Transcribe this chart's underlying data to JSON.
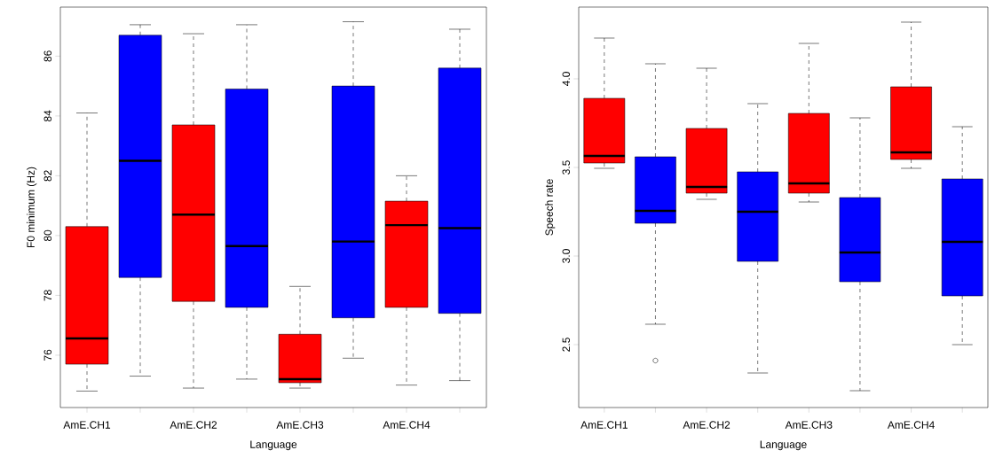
{
  "chart_data": [
    {
      "type": "box",
      "xlabel": "Language",
      "ylabel": "F0 minimum (Hz)",
      "categories": [
        "AmE.CH1",
        null,
        "AmE.CH2",
        null,
        "AmE.CH3",
        null,
        "AmE.CH4",
        null
      ],
      "colors": [
        "#ff0000",
        "#0000ff",
        "#ff0000",
        "#0000ff",
        "#ff0000",
        "#0000ff",
        "#ff0000",
        "#0000ff"
      ],
      "boxes": [
        {
          "low": 74.8,
          "q1": 75.7,
          "median": 76.56,
          "q3": 80.3,
          "high": 84.1
        },
        {
          "low": 75.3,
          "q1": 78.6,
          "median": 82.5,
          "q3": 86.7,
          "high": 87.05
        },
        {
          "low": 74.9,
          "q1": 77.8,
          "median": 80.7,
          "q3": 83.7,
          "high": 86.75
        },
        {
          "low": 75.2,
          "q1": 77.6,
          "median": 79.65,
          "q3": 84.9,
          "high": 87.05
        },
        {
          "low": 74.9,
          "q1": 75.08,
          "median": 75.2,
          "q3": 76.7,
          "high": 78.3
        },
        {
          "low": 75.9,
          "q1": 77.25,
          "median": 79.8,
          "q3": 85.0,
          "high": 87.15
        },
        {
          "low": 75.0,
          "q1": 77.6,
          "median": 80.35,
          "q3": 81.15,
          "high": 82.0
        },
        {
          "low": 75.15,
          "q1": 77.4,
          "median": 80.25,
          "q3": 85.6,
          "high": 86.9
        }
      ],
      "ylim": [
        74.25,
        87.64
      ],
      "yticks": [
        76,
        78,
        80,
        82,
        84,
        86
      ]
    },
    {
      "type": "box",
      "xlabel": "Language",
      "ylabel": "Speech rate",
      "categories": [
        "AmE.CH1",
        null,
        "AmE.CH2",
        null,
        "AmE.CH3",
        null,
        "AmE.CH4",
        null
      ],
      "colors": [
        "#ff0000",
        "#0000ff",
        "#ff0000",
        "#0000ff",
        "#ff0000",
        "#0000ff",
        "#ff0000",
        "#0000ff"
      ],
      "boxes": [
        {
          "low": 3.495,
          "q1": 3.525,
          "median": 3.565,
          "q3": 3.89,
          "high": 4.23
        },
        {
          "low": 2.615,
          "q1": 3.185,
          "median": 3.255,
          "q3": 3.56,
          "high": 4.085,
          "outliers": [
            2.41
          ]
        },
        {
          "low": 3.32,
          "q1": 3.355,
          "median": 3.39,
          "q3": 3.72,
          "high": 4.06
        },
        {
          "low": 2.34,
          "q1": 2.97,
          "median": 3.25,
          "q3": 3.475,
          "high": 3.86
        },
        {
          "low": 3.305,
          "q1": 3.355,
          "median": 3.41,
          "q3": 3.805,
          "high": 4.2
        },
        {
          "low": 2.24,
          "q1": 2.855,
          "median": 3.02,
          "q3": 3.33,
          "high": 3.78
        },
        {
          "low": 3.495,
          "q1": 3.545,
          "median": 3.585,
          "q3": 3.955,
          "high": 4.32
        },
        {
          "low": 2.5,
          "q1": 2.775,
          "median": 3.08,
          "q3": 3.435,
          "high": 3.73
        }
      ],
      "ylim": [
        2.145,
        4.405
      ],
      "yticks": [
        2.5,
        {
          "value": 3.0,
          "label": "3.0"
        },
        3.5,
        {
          "value": 4.0,
          "label": "4.0"
        }
      ]
    }
  ]
}
